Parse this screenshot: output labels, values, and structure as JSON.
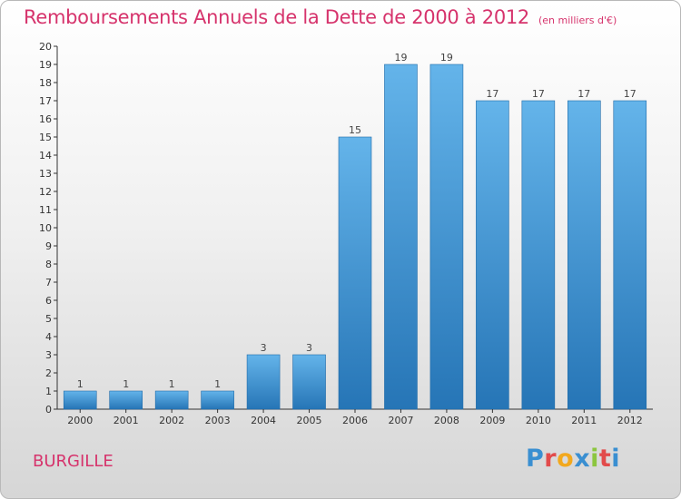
{
  "header": {
    "title": "Remboursements Annuels de la Dette de 2000 à 2012",
    "subtitle": "(en milliers d'€)"
  },
  "footer": {
    "commune": "BURGILLE",
    "logo_text": "Proxiti",
    "logo_colors": [
      "#3a8fd1",
      "#e24b4b",
      "#f2a81d",
      "#3a8fd1",
      "#8cc63f",
      "#e24b4b",
      "#3a8fd1"
    ]
  },
  "colors": {
    "bar_light": "#64b4ea",
    "bar_dark": "#2675b6",
    "title": "#d6336c",
    "grid": "#9a9a9a"
  },
  "chart_data": {
    "type": "bar",
    "title": "Remboursements Annuels de la Dette de 2000 à 2012",
    "subtitle": "(en milliers d'€)",
    "categories": [
      "2000",
      "2001",
      "2002",
      "2003",
      "2004",
      "2005",
      "2006",
      "2007",
      "2008",
      "2009",
      "2010",
      "2011",
      "2012"
    ],
    "values": [
      1,
      1,
      1,
      1,
      3,
      3,
      15,
      19,
      19,
      17,
      17,
      17,
      17
    ],
    "ylim": [
      0,
      20
    ],
    "yticks": [
      0,
      1,
      2,
      3,
      4,
      5,
      6,
      7,
      8,
      9,
      10,
      11,
      12,
      13,
      14,
      15,
      16,
      17,
      18,
      19,
      20
    ],
    "grid": false,
    "data_labels": true
  }
}
